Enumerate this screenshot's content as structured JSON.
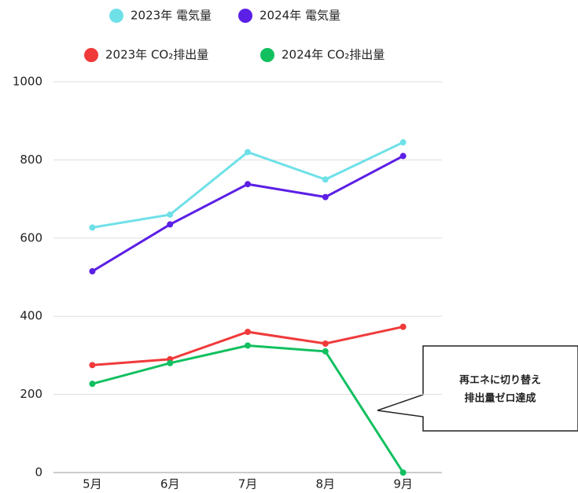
{
  "chart_data": {
    "type": "line",
    "categories": [
      "5月",
      "6月",
      "7月",
      "8月",
      "9月"
    ],
    "series": [
      {
        "name": "2023年 電気量",
        "color": "#6fe0e8",
        "values": [
          627,
          660,
          820,
          750,
          845
        ]
      },
      {
        "name": "2024年 電気量",
        "color": "#5b1fe6",
        "values": [
          515,
          635,
          738,
          705,
          810
        ]
      },
      {
        "name": "2023年 CO₂排出量",
        "color": "#f03a3a",
        "values": [
          275,
          290,
          360,
          330,
          373
        ]
      },
      {
        "name": "2024年 CO₂排出量",
        "color": "#12c060",
        "values": [
          227,
          280,
          325,
          310,
          0
        ]
      }
    ],
    "ylim": [
      0,
      1000
    ],
    "yticks": [
      0,
      200,
      400,
      600,
      800,
      1000
    ],
    "grid": true,
    "annotation": [
      "再エネに切り替え",
      "排出量ゼロ達成"
    ]
  }
}
